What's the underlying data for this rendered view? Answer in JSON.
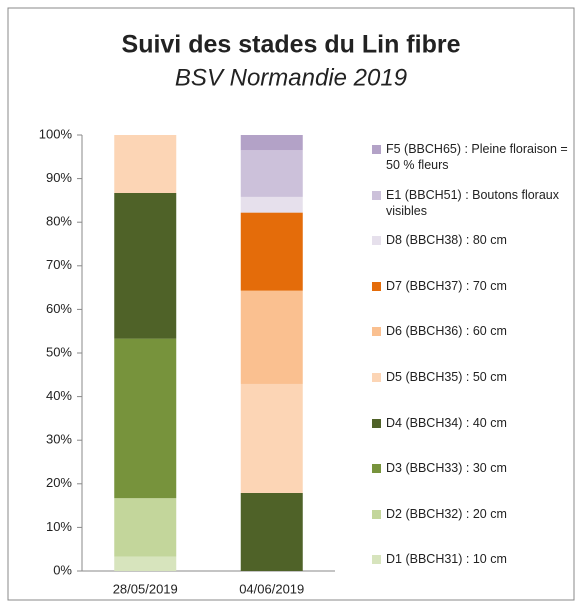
{
  "chart_data": {
    "type": "stacked_bar",
    "title": "Suivi des stades du Lin fibre",
    "subtitle": "BSV Normandie 2019",
    "categories": [
      "28/05/2019",
      "04/06/2019"
    ],
    "series": [
      {
        "name": "D1 (BBCH31) : 10 cm",
        "color": "#d7e4bd",
        "values": [
          3.3,
          0
        ]
      },
      {
        "name": "D2 (BBCH32) : 20 cm",
        "color": "#c3d69b",
        "values": [
          13.4,
          0
        ]
      },
      {
        "name": "D3 (BBCH33) : 30 cm",
        "color": "#77933c",
        "values": [
          36.6,
          0
        ]
      },
      {
        "name": "D4 (BBCH34) : 40 cm",
        "color": "#4f6228",
        "values": [
          33.4,
          17.9
        ]
      },
      {
        "name": "D5 (BBCH35) : 50 cm",
        "color": "#fcd5b5",
        "values": [
          13.3,
          25
        ]
      },
      {
        "name": "D6 (BBCH36) : 60 cm",
        "color": "#fac090",
        "values": [
          0,
          21.4
        ]
      },
      {
        "name": "D7 (BBCH37) : 70 cm",
        "color": "#e46c0a",
        "values": [
          0,
          17.9
        ]
      },
      {
        "name": "D8 (BBCH38) : 80 cm",
        "color": "#e6e0ec",
        "values": [
          0,
          3.6
        ]
      },
      {
        "name": "E1 (BBCH51) : Boutons floraux visibles",
        "color": "#ccc1da",
        "values": [
          0,
          10.7
        ]
      },
      {
        "name": "F5 (BBCH65) : Pleine floraison = 50 % fleurs",
        "color": "#b3a2c7",
        "values": [
          0,
          3.5
        ]
      }
    ],
    "ylim": [
      0,
      100
    ],
    "yticks": [
      {
        "value": 0,
        "label": "0%"
      },
      {
        "value": 10,
        "label": "10%"
      },
      {
        "value": 20,
        "label": "20%"
      },
      {
        "value": 30,
        "label": "30%"
      },
      {
        "value": 40,
        "label": "40%"
      },
      {
        "value": 50,
        "label": "50%"
      },
      {
        "value": 60,
        "label": "60%"
      },
      {
        "value": 70,
        "label": "70%"
      },
      {
        "value": 80,
        "label": "80%"
      },
      {
        "value": 90,
        "label": "90%"
      },
      {
        "value": 100,
        "label": "100%"
      }
    ],
    "legend": "right"
  }
}
